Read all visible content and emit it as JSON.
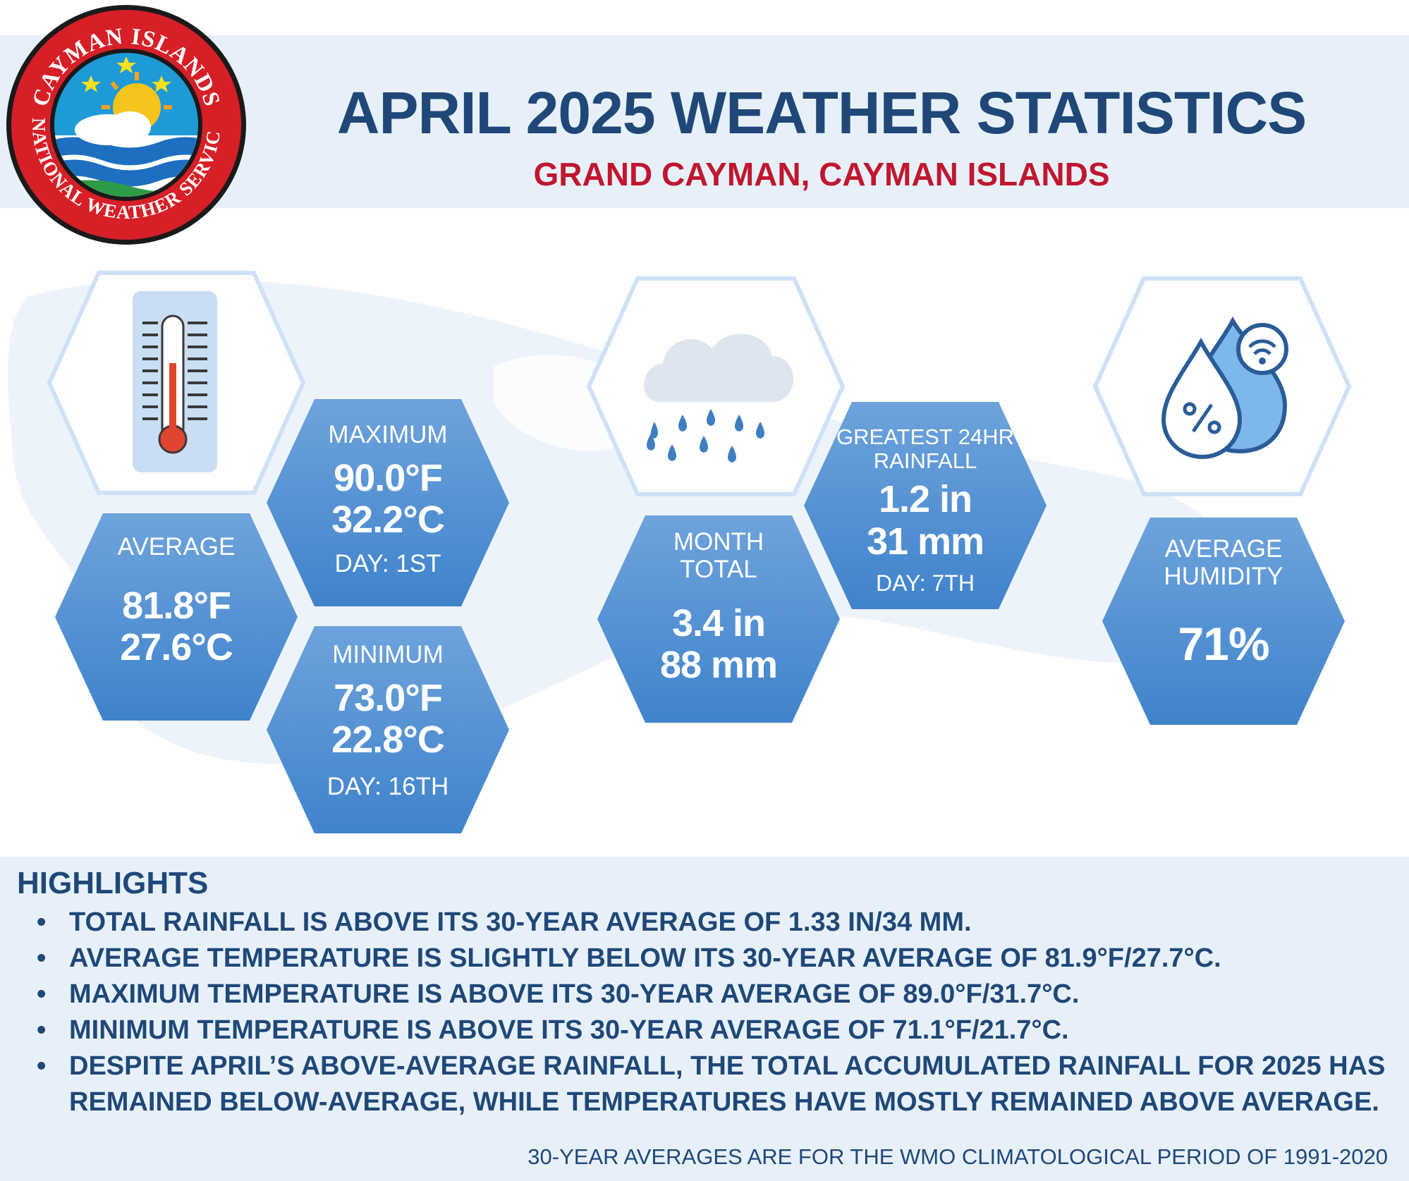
{
  "header": {
    "title": "APRIL 2025 WEATHER STATISTICS",
    "subtitle": "GRAND CAYMAN, CAYMAN ISLANDS"
  },
  "logo": {
    "top_text": "CAYMAN ISLANDS",
    "bottom_text": "NATIONAL WEATHER SERVICE",
    "icon": "sun-cloud-waves-logo"
  },
  "temperature": {
    "icon": "thermometer-icon",
    "average": {
      "label": "AVERAGE",
      "f": "81.8°F",
      "c": "27.6°C"
    },
    "maximum": {
      "label": "MAXIMUM",
      "f": "90.0°F",
      "c": "32.2°C",
      "day": "DAY: 1ST"
    },
    "minimum": {
      "label": "MINIMUM",
      "f": "73.0°F",
      "c": "22.8°C",
      "day": "DAY: 16TH"
    }
  },
  "rainfall": {
    "icon": "rain-cloud-icon",
    "month_total": {
      "label_1": "MONTH",
      "label_2": "TOTAL",
      "in": "3.4 in",
      "mm": "88 mm"
    },
    "greatest_24hr": {
      "label_1": "GREATEST 24HR",
      "label_2": "RAINFALL",
      "in": "1.2 in",
      "mm": "31 mm",
      "day": "DAY: 7TH"
    }
  },
  "humidity": {
    "icon": "humidity-drops-icon",
    "label_1": "AVERAGE",
    "label_2": "HUMIDITY",
    "value": "71%"
  },
  "highlights": {
    "title": "HIGHLIGHTS",
    "items": [
      "TOTAL RAINFALL IS ABOVE ITS 30-YEAR AVERAGE OF 1.33 IN/34 MM.",
      "AVERAGE TEMPERATURE IS SLIGHTLY BELOW ITS 30-YEAR AVERAGE OF 81.9°F/27.7°C.",
      "MAXIMUM TEMPERATURE IS ABOVE ITS 30-YEAR AVERAGE OF 89.0°F/31.7°C.",
      "MINIMUM TEMPERATURE IS ABOVE ITS 30-YEAR AVERAGE OF 71.1°F/21.7°C.",
      "DESPITE APRIL’S ABOVE-AVERAGE RAINFALL, THE TOTAL ACCUMULATED RAINFALL FOR 2025 HAS REMAINED BELOW-AVERAGE, WHILE TEMPERATURES HAVE MOSTLY REMAINED ABOVE AVERAGE."
    ],
    "footnote": "30-YEAR AVERAGES ARE FOR THE WMO CLIMATOLOGICAL PERIOD OF 1991-2020"
  },
  "colors": {
    "title": "#1f4878",
    "subtitle": "#c0172f",
    "hex_top": "#6ea3dc",
    "hex_bottom": "#3f83cb",
    "band": "#e7f0f9"
  }
}
